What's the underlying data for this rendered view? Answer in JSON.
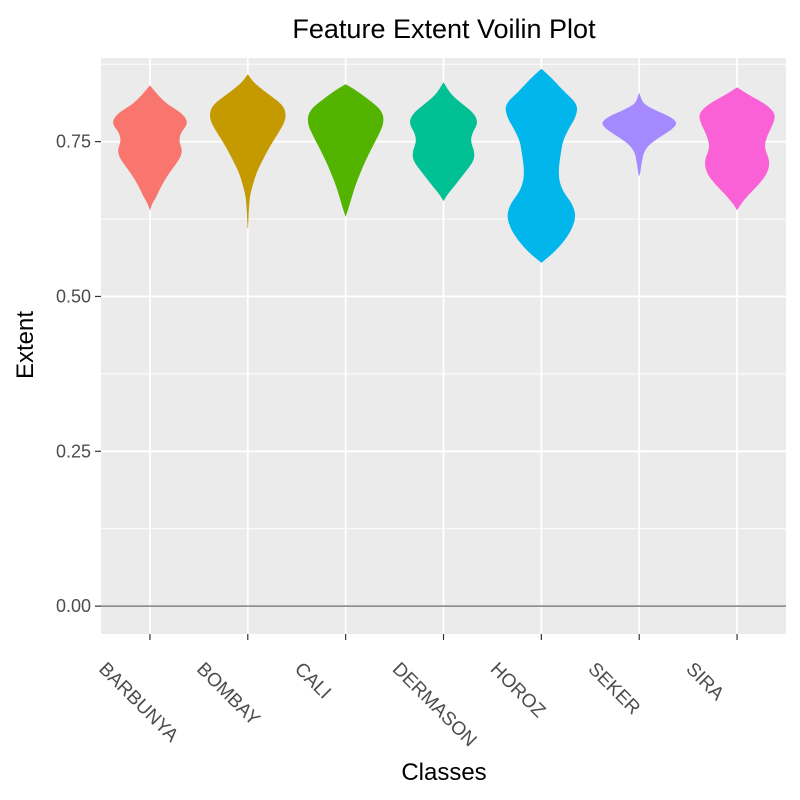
{
  "chart_data": {
    "type": "violin",
    "title": "Feature Extent Voilin Plot",
    "xlabel": "Classes",
    "ylabel": "Extent",
    "ylim": [
      -0.045,
      0.885
    ],
    "yticks": [
      0,
      0.25,
      0.5,
      0.75
    ],
    "ytick_labels": [
      "0.00",
      "0.25",
      "0.50",
      "0.75"
    ],
    "grid": true,
    "legend": "none",
    "background": "#ebebeb",
    "categories": [
      "BARBUNYA",
      "BOMBAY",
      "CALI",
      "DERMASON",
      "HOROZ",
      "SEKER",
      "SIRA"
    ],
    "series": [
      {
        "category": "BARBUNYA",
        "color": "#f8766d",
        "profile": [
          [
            0.64,
            0.0
          ],
          [
            0.65,
            0.05
          ],
          [
            0.66,
            0.15
          ],
          [
            0.68,
            0.3
          ],
          [
            0.7,
            0.5
          ],
          [
            0.72,
            0.75
          ],
          [
            0.735,
            0.85
          ],
          [
            0.75,
            0.75
          ],
          [
            0.765,
            0.8
          ],
          [
            0.78,
            1.0
          ],
          [
            0.795,
            0.85
          ],
          [
            0.81,
            0.45
          ],
          [
            0.825,
            0.2
          ],
          [
            0.84,
            0.0
          ]
        ]
      },
      {
        "category": "BOMBAY",
        "color": "#c49a00",
        "profile": [
          [
            0.61,
            0.0
          ],
          [
            0.63,
            0.01
          ],
          [
            0.66,
            0.04
          ],
          [
            0.68,
            0.12
          ],
          [
            0.7,
            0.22
          ],
          [
            0.72,
            0.38
          ],
          [
            0.74,
            0.55
          ],
          [
            0.76,
            0.75
          ],
          [
            0.78,
            0.95
          ],
          [
            0.795,
            1.0
          ],
          [
            0.81,
            0.9
          ],
          [
            0.83,
            0.45
          ],
          [
            0.845,
            0.15
          ],
          [
            0.858,
            0.0
          ]
        ]
      },
      {
        "category": "CALI",
        "color": "#53b400",
        "profile": [
          [
            0.63,
            0.0
          ],
          [
            0.645,
            0.08
          ],
          [
            0.66,
            0.15
          ],
          [
            0.68,
            0.25
          ],
          [
            0.7,
            0.38
          ],
          [
            0.72,
            0.52
          ],
          [
            0.74,
            0.68
          ],
          [
            0.76,
            0.85
          ],
          [
            0.78,
            1.0
          ],
          [
            0.8,
            0.95
          ],
          [
            0.82,
            0.55
          ],
          [
            0.835,
            0.2
          ],
          [
            0.842,
            0.0
          ]
        ]
      },
      {
        "category": "DERMASON",
        "color": "#00c094",
        "profile": [
          [
            0.655,
            0.0
          ],
          [
            0.665,
            0.1
          ],
          [
            0.68,
            0.3
          ],
          [
            0.7,
            0.55
          ],
          [
            0.72,
            0.8
          ],
          [
            0.735,
            0.8
          ],
          [
            0.75,
            0.7
          ],
          [
            0.765,
            0.75
          ],
          [
            0.78,
            0.9
          ],
          [
            0.795,
            0.8
          ],
          [
            0.81,
            0.5
          ],
          [
            0.825,
            0.2
          ],
          [
            0.845,
            0.0
          ]
        ]
      },
      {
        "category": "HOROZ",
        "color": "#00b6eb",
        "profile": [
          [
            0.555,
            0.0
          ],
          [
            0.57,
            0.3
          ],
          [
            0.59,
            0.6
          ],
          [
            0.61,
            0.8
          ],
          [
            0.63,
            0.9
          ],
          [
            0.65,
            0.8
          ],
          [
            0.67,
            0.55
          ],
          [
            0.69,
            0.45
          ],
          [
            0.71,
            0.45
          ],
          [
            0.73,
            0.5
          ],
          [
            0.75,
            0.55
          ],
          [
            0.77,
            0.7
          ],
          [
            0.79,
            0.9
          ],
          [
            0.81,
            0.95
          ],
          [
            0.83,
            0.6
          ],
          [
            0.85,
            0.3
          ],
          [
            0.867,
            0.0
          ]
        ]
      },
      {
        "category": "SEKER",
        "color": "#a58aff",
        "profile": [
          [
            0.695,
            0.0
          ],
          [
            0.7,
            0.02
          ],
          [
            0.71,
            0.04
          ],
          [
            0.72,
            0.07
          ],
          [
            0.73,
            0.1
          ],
          [
            0.74,
            0.18
          ],
          [
            0.75,
            0.35
          ],
          [
            0.76,
            0.6
          ],
          [
            0.77,
            0.85
          ],
          [
            0.78,
            1.0
          ],
          [
            0.79,
            0.8
          ],
          [
            0.8,
            0.42
          ],
          [
            0.81,
            0.12
          ],
          [
            0.82,
            0.04
          ],
          [
            0.828,
            0.0
          ]
        ]
      },
      {
        "category": "SIRA",
        "color": "#fb61d7",
        "profile": [
          [
            0.64,
            0.0
          ],
          [
            0.65,
            0.1
          ],
          [
            0.665,
            0.3
          ],
          [
            0.68,
            0.55
          ],
          [
            0.7,
            0.8
          ],
          [
            0.72,
            0.85
          ],
          [
            0.74,
            0.7
          ],
          [
            0.76,
            0.78
          ],
          [
            0.78,
            0.95
          ],
          [
            0.795,
            1.0
          ],
          [
            0.81,
            0.75
          ],
          [
            0.825,
            0.3
          ],
          [
            0.837,
            0.0
          ]
        ]
      }
    ]
  }
}
